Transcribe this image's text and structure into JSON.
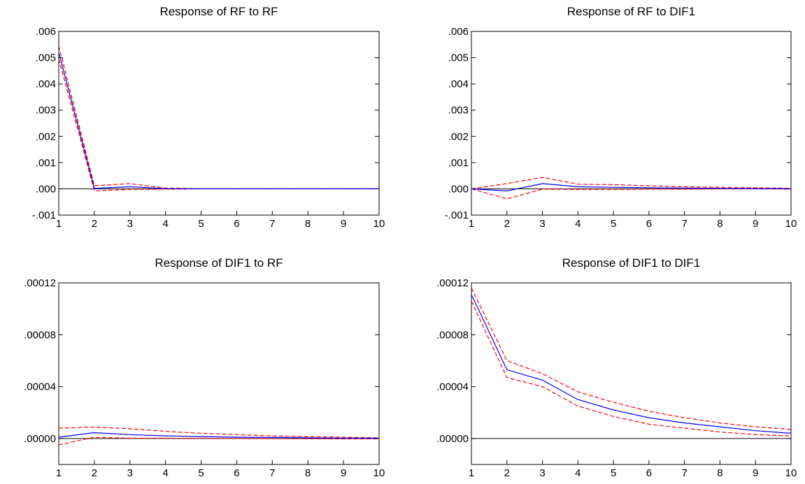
{
  "colors": {
    "response_line": "#0000ff",
    "confidence_band": "#ff0000",
    "zero_line": "#000000",
    "axis": "#000000"
  },
  "chart_data": [
    {
      "type": "line",
      "title": "Response of RF to RF",
      "x": [
        1,
        2,
        3,
        4,
        5,
        6,
        7,
        8,
        9,
        10
      ],
      "xticks": [
        "1",
        "2",
        "3",
        "4",
        "5",
        "6",
        "7",
        "8",
        "9",
        "10"
      ],
      "ylim": [
        -0.001,
        0.006
      ],
      "yticks": [
        -0.001,
        0.0,
        0.001,
        0.002,
        0.003,
        0.004,
        0.005,
        0.006
      ],
      "ytick_labels": [
        "-.001",
        ".000",
        ".001",
        ".002",
        ".003",
        ".004",
        ".005",
        ".006"
      ],
      "zero_line": true,
      "grid": false,
      "series": [
        {
          "role": "response",
          "style": "solid",
          "values": [
            0.0052,
            2e-05,
            8e-05,
            1e-05,
            0.0,
            0.0,
            0.0,
            0.0,
            0.0,
            0.0
          ]
        },
        {
          "role": "upper_band",
          "style": "dashed",
          "values": [
            0.00545,
            0.00012,
            0.0002,
            3e-05,
            1e-05,
            0.0,
            0.0,
            0.0,
            0.0,
            0.0
          ]
        },
        {
          "role": "lower_band",
          "style": "dashed",
          "values": [
            0.00495,
            -8e-05,
            -2e-05,
            -1e-05,
            0.0,
            0.0,
            0.0,
            0.0,
            0.0,
            0.0
          ]
        }
      ]
    },
    {
      "type": "line",
      "title": "Response of RF to DIF1",
      "x": [
        1,
        2,
        3,
        4,
        5,
        6,
        7,
        8,
        9,
        10
      ],
      "xticks": [
        "1",
        "2",
        "3",
        "4",
        "5",
        "6",
        "7",
        "8",
        "9",
        "10"
      ],
      "ylim": [
        -0.001,
        0.006
      ],
      "yticks": [
        -0.001,
        0.0,
        0.001,
        0.002,
        0.003,
        0.004,
        0.005,
        0.006
      ],
      "ytick_labels": [
        "-.001",
        ".000",
        ".001",
        ".002",
        ".003",
        ".004",
        ".005",
        ".006"
      ],
      "zero_line": true,
      "grid": false,
      "series": [
        {
          "role": "response",
          "style": "solid",
          "values": [
            0.0,
            -8e-05,
            0.0002,
            8e-05,
            6e-05,
            4e-05,
            3e-05,
            2e-05,
            1e-05,
            1e-05
          ]
        },
        {
          "role": "upper_band",
          "style": "dashed",
          "values": [
            0.0,
            0.0002,
            0.00044,
            0.00018,
            0.00016,
            0.00012,
            8e-05,
            6e-05,
            4e-05,
            2e-05
          ]
        },
        {
          "role": "lower_band",
          "style": "dashed",
          "values": [
            0.0,
            -0.00038,
            -1e-05,
            -2e-05,
            -2e-05,
            -1e-05,
            -1e-05,
            0.0,
            0.0,
            -1e-05
          ]
        }
      ]
    },
    {
      "type": "line",
      "title": "Response of DIF1 to RF",
      "x": [
        1,
        2,
        3,
        4,
        5,
        6,
        7,
        8,
        9,
        10
      ],
      "xticks": [
        "1",
        "2",
        "3",
        "4",
        "5",
        "6",
        "7",
        "8",
        "9",
        "10"
      ],
      "ylim": [
        -2e-05,
        0.00012
      ],
      "yticks": [
        0.0,
        4e-05,
        8e-05,
        0.00012
      ],
      "ytick_labels": [
        ".00000",
        ".00004",
        ".00008",
        ".00012"
      ],
      "zero_line": true,
      "grid": false,
      "series": [
        {
          "role": "response",
          "style": "solid",
          "values": [
            1e-06,
            4.5e-06,
            3e-06,
            2e-06,
            1.5e-06,
            1e-06,
            8e-07,
            5e-07,
            3e-07,
            2e-07
          ]
        },
        {
          "role": "upper_band",
          "style": "dashed",
          "values": [
            8e-06,
            8.8e-06,
            7.5e-06,
            5.5e-06,
            4e-06,
            3e-06,
            2e-06,
            1.5e-06,
            1e-06,
            5e-07
          ]
        },
        {
          "role": "lower_band",
          "style": "dashed",
          "values": [
            -5e-06,
            1e-06,
            2e-07,
            2e-07,
            1e-07,
            0.0,
            -2e-07,
            -2e-07,
            -3e-07,
            -3e-07
          ]
        }
      ]
    },
    {
      "type": "line",
      "title": "Response of DIF1 to DIF1",
      "x": [
        1,
        2,
        3,
        4,
        5,
        6,
        7,
        8,
        9,
        10
      ],
      "xticks": [
        "1",
        "2",
        "3",
        "4",
        "5",
        "6",
        "7",
        "8",
        "9",
        "10"
      ],
      "ylim": [
        -2e-05,
        0.00012
      ],
      "yticks": [
        0.0,
        4e-05,
        8e-05,
        0.00012
      ],
      "ytick_labels": [
        ".00000",
        ".00004",
        ".00008",
        ".00012"
      ],
      "zero_line": true,
      "grid": false,
      "series": [
        {
          "role": "response",
          "style": "solid",
          "values": [
            0.000111,
            5.3e-05,
            4.5e-05,
            3e-05,
            2.2e-05,
            1.6e-05,
            1.2e-05,
            9e-06,
            6e-06,
            4e-06
          ]
        },
        {
          "role": "upper_band",
          "style": "dashed",
          "values": [
            0.000116,
            6e-05,
            5e-05,
            3.6e-05,
            2.8e-05,
            2.1e-05,
            1.6e-05,
            1.2e-05,
            9e-06,
            7e-06
          ]
        },
        {
          "role": "lower_band",
          "style": "dashed",
          "values": [
            0.000106,
            4.7e-05,
            4e-05,
            2.5e-05,
            1.7e-05,
            1.1e-05,
            8e-06,
            5e-06,
            3e-06,
            2e-06
          ]
        }
      ]
    }
  ]
}
